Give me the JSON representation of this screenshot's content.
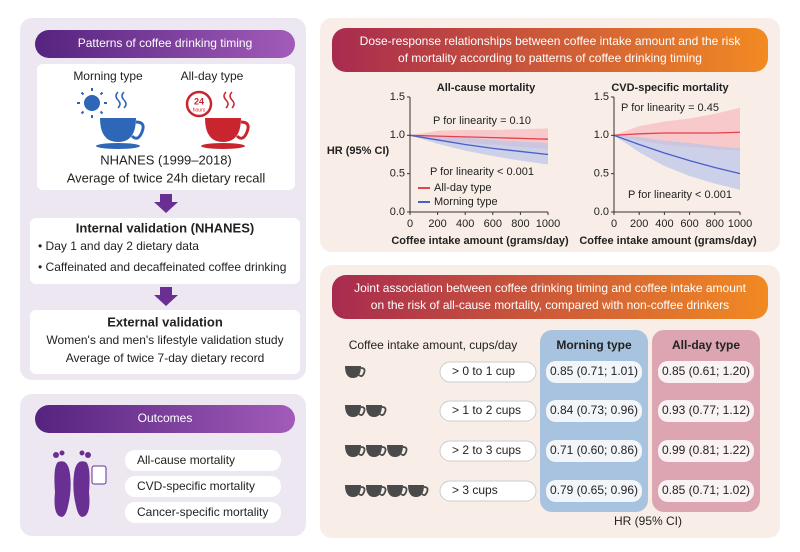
{
  "patterns": {
    "title": "Patterns of coffee drinking timing",
    "morning": "Morning type",
    "allday": "All-day type",
    "clock_number": "24",
    "clock_unit": "hours",
    "source": "NHANES (1999–2018)",
    "method": "Average of twice 24h dietary recall"
  },
  "internal_validation": {
    "title": "Internal validation (NHANES)",
    "items": [
      "• Day 1 and day 2 dietary data",
      "• Caffeinated and decaffeinated coffee drinking"
    ]
  },
  "external_validation": {
    "title": "External validation",
    "lines": [
      "Women's and men's lifestyle validation study",
      "Average of twice 7-day dietary record"
    ]
  },
  "outcomes": {
    "title": "Outcomes",
    "items": [
      "All-cause mortality",
      "CVD-specific mortality",
      "Cancer-specific mortality"
    ]
  },
  "dose_response": {
    "title_lines": [
      "Dose-response relationships between coffee intake amount and the risk",
      "of mortality according to patterns of coffee drinking timing"
    ],
    "ylabel": "HR (95% CI)",
    "charts": [
      {
        "type": "line",
        "title": "All-cause mortality",
        "xlabel": "Coffee intake amount (grams/day)",
        "annotations": [
          "P for linearity = 0.10",
          "P for linearity < 0.001"
        ],
        "legend": true,
        "x": [
          0,
          200,
          400,
          600,
          800,
          1000
        ],
        "xlim": [
          0,
          1000
        ],
        "ylim": [
          0,
          1.5
        ],
        "xticks": [
          0,
          200,
          400,
          600,
          800,
          1000
        ],
        "yticks": [
          {
            "value": 0,
            "label": "0.0"
          },
          {
            "value": 0.5,
            "label": "0.5"
          },
          {
            "value": 1,
            "label": "1.0"
          },
          {
            "value": 1.5,
            "label": "1.5"
          }
        ],
        "series": [
          {
            "name": "All-day type",
            "color": "#e5404c",
            "band_color": "#f7b9be",
            "values": [
              1,
              0.99,
              0.98,
              0.97,
              0.96,
              0.95
            ],
            "lower": [
              1,
              0.93,
              0.9,
              0.88,
              0.85,
              0.82
            ],
            "upper": [
              1,
              1.06,
              1.07,
              1.07,
              1.08,
              1.09
            ]
          },
          {
            "name": "Morning type",
            "color": "#4a5fc4",
            "band_color": "#b9c3ea",
            "values": [
              1,
              0.94,
              0.88,
              0.83,
              0.79,
              0.75
            ],
            "lower": [
              1,
              0.89,
              0.8,
              0.73,
              0.67,
              0.62
            ],
            "upper": [
              1,
              0.99,
              0.97,
              0.94,
              0.92,
              0.9
            ]
          }
        ]
      },
      {
        "type": "line",
        "title": "CVD-specific mortality",
        "xlabel": "Coffee intake amount (grams/day)",
        "annotations": [
          "P for linearity = 0.45",
          "P for linearity < 0.001"
        ],
        "legend": false,
        "x": [
          0,
          200,
          400,
          600,
          800,
          1000
        ],
        "xlim": [
          0,
          1000
        ],
        "ylim": [
          0,
          1.5
        ],
        "xticks": [
          0,
          200,
          400,
          600,
          800,
          1000
        ],
        "yticks": [
          {
            "value": 0,
            "label": "0.0"
          },
          {
            "value": 0.5,
            "label": "0.5"
          },
          {
            "value": 1,
            "label": "1.0"
          },
          {
            "value": 1.5,
            "label": "1.5"
          }
        ],
        "series": [
          {
            "color": "#e5404c",
            "band_color": "#f7b9be",
            "values": [
              1,
              1.02,
              1.03,
              1.03,
              1.03,
              1.04
            ],
            "lower": [
              1,
              0.93,
              0.88,
              0.85,
              0.82,
              0.8
            ],
            "upper": [
              1,
              1.12,
              1.18,
              1.22,
              1.28,
              1.36
            ]
          },
          {
            "color": "#4a5fc4",
            "band_color": "#b9c3ea",
            "values": [
              1,
              0.88,
              0.77,
              0.67,
              0.58,
              0.5
            ],
            "lower": [
              1,
              0.78,
              0.6,
              0.47,
              0.37,
              0.29
            ],
            "upper": [
              1,
              0.98,
              0.93,
              0.9,
              0.86,
              0.83
            ]
          }
        ]
      }
    ]
  },
  "joint": {
    "title_lines": [
      "Joint association between coffee drinking timing and coffee intake amount",
      "on the risk of all-cause mortality, compared with non-coffee drinkers"
    ],
    "row_header": "Coffee intake amount, cups/day",
    "columns": [
      "Morning type",
      "All-day type"
    ],
    "rows": [
      {
        "label": "> 0 to 1 cup",
        "cells": [
          "0.85 (0.71; 1.01)",
          "0.85 (0.61; 1.20)"
        ]
      },
      {
        "label": "> 1 to 2 cups",
        "cells": [
          "0.84 (0.73; 0.96)",
          "0.93 (0.77; 1.12)"
        ]
      },
      {
        "label": "> 2 to 3 cups",
        "cells": [
          "0.71 (0.60; 0.86)",
          "0.99 (0.81; 1.22)"
        ]
      },
      {
        "label": "> 3 cups",
        "cells": [
          "0.79 (0.65; 0.96)",
          "0.85 (0.71; 1.02)"
        ]
      }
    ],
    "footer": "HR (95% CI)"
  }
}
